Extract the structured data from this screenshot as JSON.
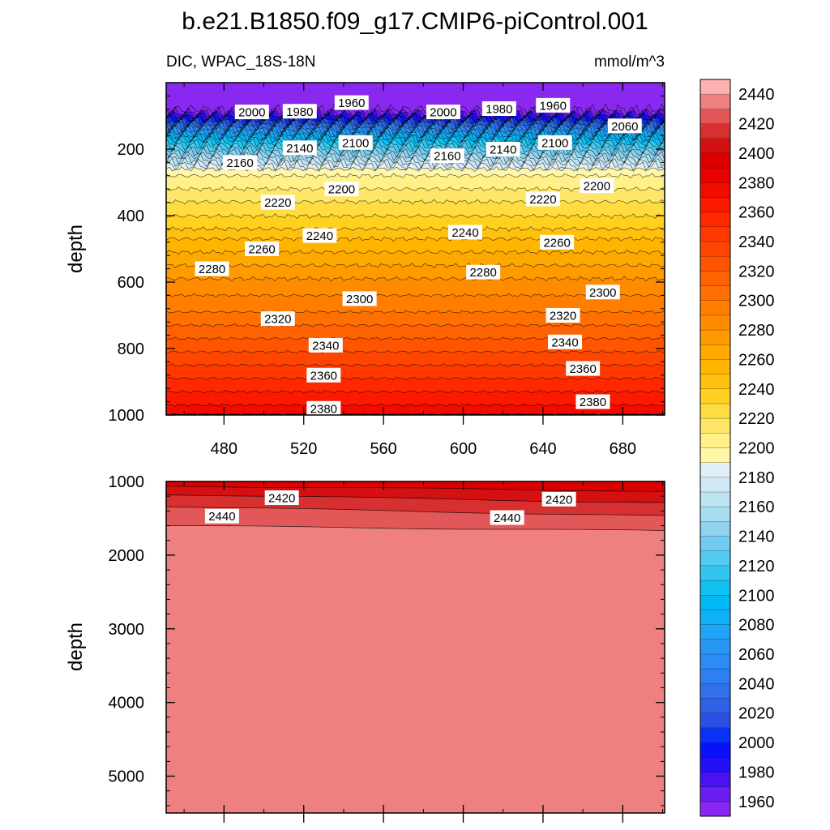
{
  "title": "b.e21.B1850.f09_g17.CMIP6-piControl.001",
  "chart_data": {
    "type": "heatmap",
    "subtitle_left": "DIC, WPAC_18S-18N",
    "subtitle_right": "mmol/m^3",
    "xlim": [
      451,
      701
    ],
    "x_ticks": [
      "480",
      "520",
      "560",
      "600",
      "640",
      "680"
    ],
    "x_tick_values": [
      480,
      520,
      560,
      600,
      640,
      680
    ],
    "levels": [
      1960,
      1970,
      1980,
      1990,
      2000,
      2010,
      2020,
      2030,
      2040,
      2050,
      2060,
      2070,
      2080,
      2090,
      2100,
      2110,
      2120,
      2130,
      2140,
      2150,
      2160,
      2170,
      2180,
      2190,
      2200,
      2210,
      2220,
      2230,
      2240,
      2250,
      2260,
      2270,
      2280,
      2290,
      2300,
      2310,
      2320,
      2330,
      2340,
      2350,
      2360,
      2370,
      2380,
      2390,
      2400,
      2410,
      2420,
      2430,
      2440,
      2450
    ],
    "colors": [
      "#8828f0",
      "#6a1ef2",
      "#4812f5",
      "#2410f8",
      "#0a10fa",
      "#0a32f6",
      "#2c50e4",
      "#3060e8",
      "#3070ec",
      "#2e80f0",
      "#2a8cf4",
      "#2898f6",
      "#20a4f8",
      "#10b0f8",
      "#00b8f4",
      "#10c0f0",
      "#30c6f0",
      "#50caf0",
      "#70ccf0",
      "#90d2ee",
      "#a8dcf0",
      "#bce4f2",
      "#cfeaf4",
      "#e0f0f6",
      "#fff6a8",
      "#fff088",
      "#ffe668",
      "#ffdc40",
      "#ffd020",
      "#ffc010",
      "#ffb400",
      "#ffa800",
      "#ff9a00",
      "#ff8c00",
      "#ff7e00",
      "#ff7000",
      "#ff6200",
      "#ff5400",
      "#ff4600",
      "#ff3800",
      "#ff2800",
      "#fb1a00",
      "#f20c00",
      "#e80200",
      "#dd0000",
      "#d41010",
      "#d83030",
      "#e25858",
      "#ee8080",
      "#ffb0b0"
    ],
    "colorbar_labels": [
      "2440",
      "2420",
      "2400",
      "2380",
      "2360",
      "2340",
      "2320",
      "2300",
      "2280",
      "2260",
      "2240",
      "2220",
      "2200",
      "2180",
      "2160",
      "2140",
      "2120",
      "2100",
      "2080",
      "2060",
      "2040",
      "2020",
      "2000",
      "1980",
      "1960"
    ],
    "colorbar_label_values": [
      2440,
      2420,
      2400,
      2380,
      2360,
      2340,
      2320,
      2300,
      2280,
      2260,
      2240,
      2220,
      2200,
      2180,
      2160,
      2140,
      2120,
      2100,
      2080,
      2060,
      2040,
      2020,
      2000,
      1980,
      1960
    ],
    "upper_panel": {
      "ylabel": "depth",
      "ylim": [
        0,
        1000
      ],
      "y_ticks": [
        "200",
        "400",
        "600",
        "800",
        "1000"
      ],
      "y_tick_values": [
        200,
        400,
        600,
        800,
        1000
      ],
      "profile_depths": [
        0,
        50,
        75,
        90,
        100,
        110,
        120,
        130,
        140,
        150,
        160,
        170,
        180,
        190,
        200,
        210,
        220,
        230,
        240,
        250,
        260,
        270,
        280,
        290,
        300,
        320,
        350,
        380,
        410,
        440,
        470,
        510,
        550,
        590,
        640,
        690,
        730,
        770,
        810,
        850,
        890,
        930,
        970,
        1000
      ],
      "profile_values": [
        1952,
        1953,
        1955,
        1970,
        1990,
        2010,
        2030,
        2050,
        2065,
        2080,
        2095,
        2110,
        2120,
        2130,
        2140,
        2150,
        2160,
        2170,
        2180,
        2190,
        2200,
        2205,
        2210,
        2213,
        2216,
        2220,
        2228,
        2235,
        2242,
        2250,
        2260,
        2270,
        2280,
        2290,
        2300,
        2310,
        2320,
        2330,
        2340,
        2350,
        2360,
        2370,
        2380,
        2388
      ],
      "contour_labels": [
        {
          "text": "2000",
          "x": 494,
          "depth": 88
        },
        {
          "text": "1980",
          "x": 518,
          "depth": 86
        },
        {
          "text": "1960",
          "x": 544,
          "depth": 60
        },
        {
          "text": "2000",
          "x": 590,
          "depth": 88
        },
        {
          "text": "1980",
          "x": 618,
          "depth": 78
        },
        {
          "text": "1960",
          "x": 645,
          "depth": 68
        },
        {
          "text": "2060",
          "x": 681,
          "depth": 130
        },
        {
          "text": "2160",
          "x": 488,
          "depth": 240
        },
        {
          "text": "2140",
          "x": 518,
          "depth": 196
        },
        {
          "text": "2100",
          "x": 546,
          "depth": 180
        },
        {
          "text": "2160",
          "x": 592,
          "depth": 220
        },
        {
          "text": "2140",
          "x": 620,
          "depth": 200
        },
        {
          "text": "2100",
          "x": 646,
          "depth": 180
        },
        {
          "text": "2200",
          "x": 539,
          "depth": 320
        },
        {
          "text": "2220",
          "x": 507,
          "depth": 360
        },
        {
          "text": "2200",
          "x": 667,
          "depth": 310
        },
        {
          "text": "2220",
          "x": 640,
          "depth": 350
        },
        {
          "text": "2240",
          "x": 528,
          "depth": 460
        },
        {
          "text": "2240",
          "x": 601,
          "depth": 450
        },
        {
          "text": "2260",
          "x": 499,
          "depth": 500
        },
        {
          "text": "2260",
          "x": 647,
          "depth": 480
        },
        {
          "text": "2280",
          "x": 474,
          "depth": 560
        },
        {
          "text": "2280",
          "x": 610,
          "depth": 570
        },
        {
          "text": "2300",
          "x": 548,
          "depth": 650
        },
        {
          "text": "2300",
          "x": 670,
          "depth": 630
        },
        {
          "text": "2320",
          "x": 507,
          "depth": 710
        },
        {
          "text": "2320",
          "x": 650,
          "depth": 700
        },
        {
          "text": "2340",
          "x": 531,
          "depth": 790
        },
        {
          "text": "2340",
          "x": 651,
          "depth": 780
        },
        {
          "text": "2360",
          "x": 530,
          "depth": 880
        },
        {
          "text": "2360",
          "x": 660,
          "depth": 860
        },
        {
          "text": "2380",
          "x": 530,
          "depth": 980
        },
        {
          "text": "2380",
          "x": 665,
          "depth": 960
        }
      ]
    },
    "lower_panel": {
      "ylabel": "depth",
      "ylim": [
        1000,
        5500
      ],
      "y_ticks": [
        "1000",
        "2000",
        "3000",
        "4000",
        "5000"
      ],
      "y_tick_values": [
        1000,
        2000,
        3000,
        4000,
        5000
      ],
      "contour_labels": [
        {
          "text": "2420",
          "x": 509,
          "depth": 1220
        },
        {
          "text": "2440",
          "x": 479,
          "depth": 1470
        },
        {
          "text": "2420",
          "x": 648,
          "depth": 1240
        },
        {
          "text": "2440",
          "x": 622,
          "depth": 1490
        }
      ]
    }
  }
}
